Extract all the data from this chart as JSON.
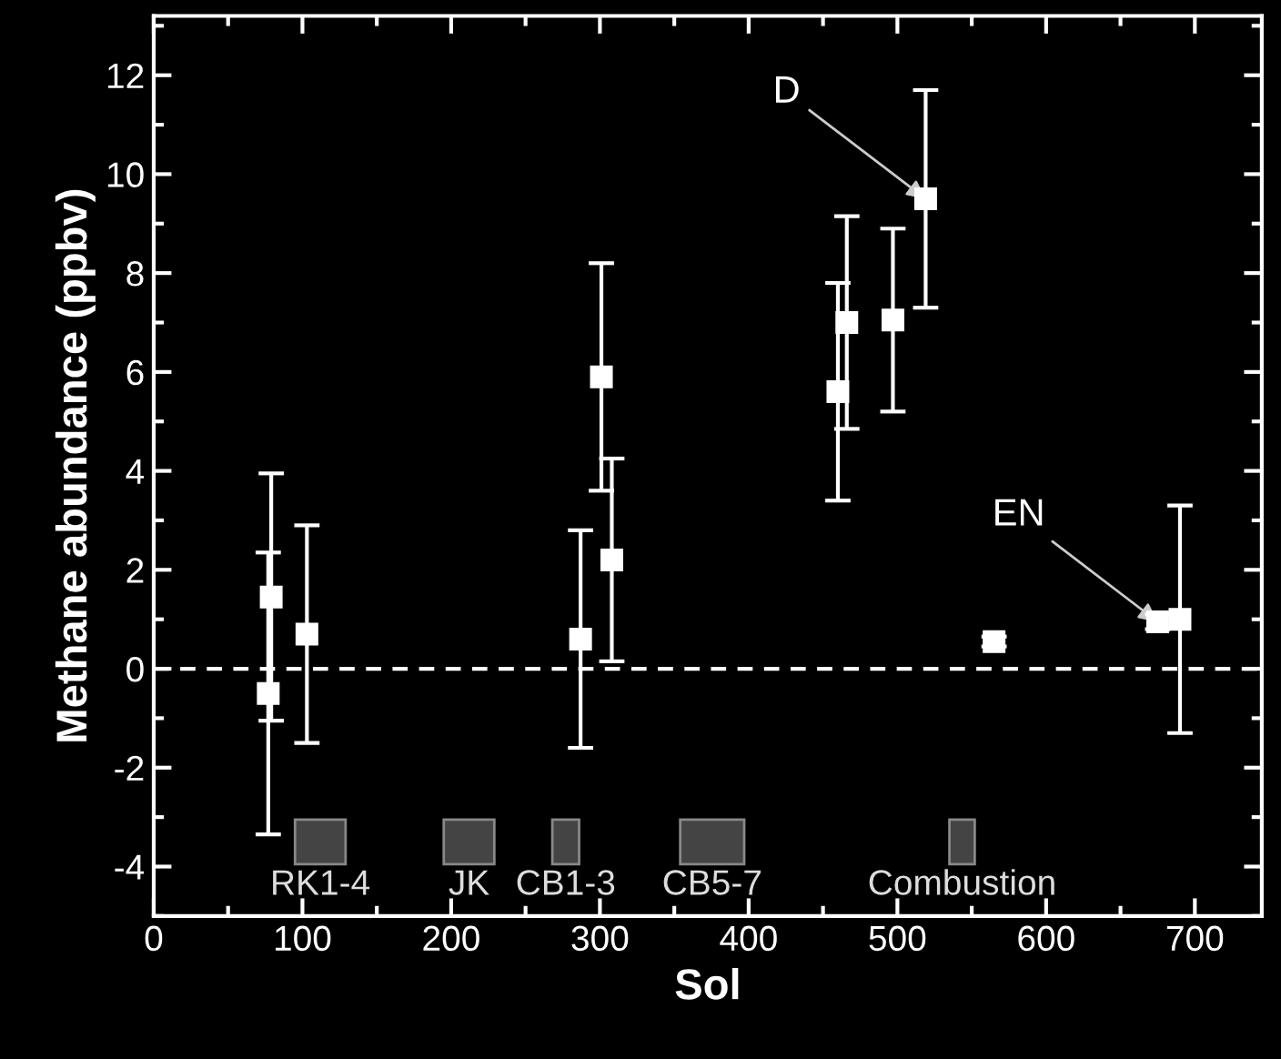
{
  "chart_data": {
    "type": "scatter",
    "xlabel": "Sol",
    "ylabel": "Methane abundance (ppbv)",
    "xlim": [
      0,
      745
    ],
    "xticks": [
      0,
      100,
      200,
      300,
      400,
      500,
      600,
      700
    ],
    "ylim": [
      -5,
      13.2
    ],
    "yticks": [
      -4,
      -2,
      0,
      2,
      4,
      6,
      8,
      10,
      12
    ],
    "marker": "square",
    "grid": false,
    "legend": false,
    "series": [
      {
        "color": "#ffffff",
        "x": [
          77,
          79,
          103,
          287,
          301,
          308,
          460,
          466,
          497,
          519,
          565,
          675,
          690
        ],
        "values": [
          -0.5,
          1.45,
          0.7,
          0.6,
          5.9,
          2.2,
          5.6,
          7.0,
          7.05,
          9.5,
          0.55,
          0.95,
          1.0
        ],
        "errors": [
          2.85,
          2.5,
          2.2,
          2.2,
          2.3,
          2.05,
          2.2,
          2.15,
          1.85,
          2.2,
          0.1,
          0.15,
          2.3
        ]
      }
    ],
    "ref_lines": [
      {
        "axis": "y",
        "value": 0,
        "color": "#ffffff",
        "line_style": "dashed"
      }
    ],
    "bands": [
      {
        "axis": "x",
        "from": 95,
        "to": 129,
        "label": "RK1-4",
        "color": "#444444"
      },
      {
        "axis": "x",
        "from": 195,
        "to": 229,
        "label": "JK",
        "color": "#444444"
      },
      {
        "axis": "x",
        "from": 268,
        "to": 286,
        "label": "CB1-3",
        "color": "#444444"
      },
      {
        "axis": "x",
        "from": 354,
        "to": 397,
        "label": "CB5-7",
        "color": "#444444"
      },
      {
        "axis": "x",
        "from": 535,
        "to": 552,
        "label": "Combustion",
        "color": "#444444"
      }
    ],
    "annotations": [
      {
        "text": "D",
        "x": 519,
        "y": 9.5
      },
      {
        "text": "EN",
        "x": 675,
        "y": 0.95
      }
    ]
  }
}
